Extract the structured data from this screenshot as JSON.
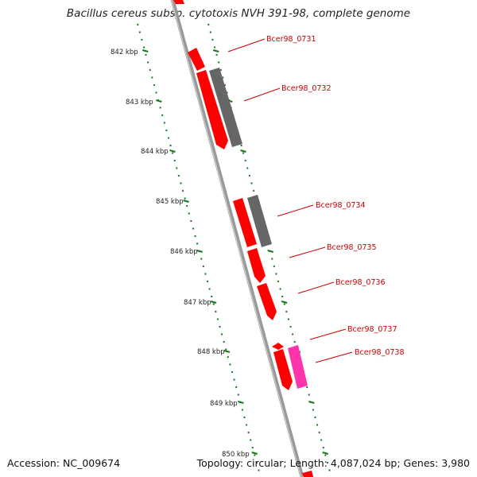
{
  "title": "Bacillus cereus subsp. cytotoxis NVH 391-98, complete genome",
  "footer": {
    "accession": "Accession: NC_009674",
    "summary": "Topology: circular; Length: 4,087,024 bp; Genes: 3,980"
  },
  "colors": {
    "backbone": "#888888",
    "tick": "#1a7a1a",
    "gene_forward": "#ff0000",
    "gene_gray": "#666666",
    "gene_pink": "#ff33aa",
    "label": "#cc0000"
  },
  "ticks": [
    {
      "label": "842 kbp"
    },
    {
      "label": "843 kbp"
    },
    {
      "label": "844 kbp"
    },
    {
      "label": "845 kbp"
    },
    {
      "label": "846 kbp"
    },
    {
      "label": "847 kbp"
    },
    {
      "label": "848 kbp"
    },
    {
      "label": "849 kbp"
    },
    {
      "label": "850 kbp"
    }
  ],
  "gene_labels": [
    {
      "label": "Bcer98_0731"
    },
    {
      "label": "Bcer98_0732"
    },
    {
      "label": "Bcer98_0734"
    },
    {
      "label": "Bcer98_0735"
    },
    {
      "label": "Bcer98_0736"
    },
    {
      "label": "Bcer98_0737"
    },
    {
      "label": "Bcer98_0738"
    }
  ]
}
